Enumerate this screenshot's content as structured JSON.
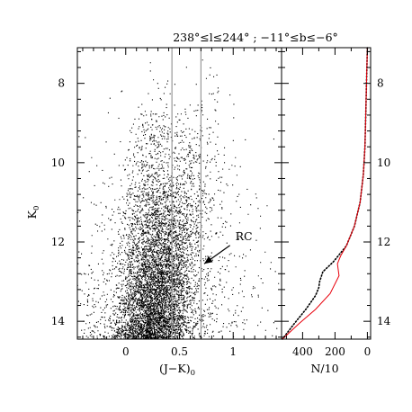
{
  "chart_data": [
    {
      "panel": "cmd",
      "type": "scatter",
      "title": "238°≤l≤244° ; −11°≤b≤−6°",
      "xlabel": "(J−K)₀",
      "ylabel": "K₀",
      "xlim": [
        -0.45,
        1.45
      ],
      "ylim": [
        14.45,
        7.1
      ],
      "x_ticks": [
        {
          "value": 0,
          "label": "0"
        },
        {
          "value": 0.5,
          "label": "0.5"
        },
        {
          "value": 1,
          "label": "1"
        }
      ],
      "y_ticks": [
        {
          "value": 8,
          "label": "8"
        },
        {
          "value": 10,
          "label": "10"
        },
        {
          "value": 12,
          "label": "12"
        },
        {
          "value": 14,
          "label": "14"
        }
      ],
      "vertical_lines": [
        0.43,
        0.7
      ],
      "density_sequences": [
        {
          "color_at_top": 0.3,
          "color_slope": -0.015,
          "spread_at_top": 0.07,
          "spread_growth": 0.015,
          "weight": 0.42
        },
        {
          "color_at_top": 0.78,
          "color_slope": -0.07,
          "spread_at_top": 0.12,
          "spread_growth": 0.006,
          "weight": 0.38
        },
        {
          "color_at_top": 0.3,
          "color_slope": 0.0,
          "spread_at_top": 0.45,
          "spread_growth": 0.0,
          "weight": 0.2
        }
      ],
      "annotations": [
        {
          "text": "RC",
          "x": 0.73,
          "y": 12.55,
          "text_x": 1.02,
          "text_y": 11.95
        }
      ]
    },
    {
      "panel": "luminosity_function",
      "type": "line",
      "xlabel": "N/10",
      "xlim": [
        530,
        -20
      ],
      "ylim": [
        14.45,
        7.1
      ],
      "x_ticks": [
        {
          "value": 400,
          "label": "400"
        },
        {
          "value": 200,
          "label": "200"
        },
        {
          "value": 0,
          "label": "0"
        }
      ],
      "y_ticks": [
        {
          "value": 8,
          "label": "8"
        },
        {
          "value": 10,
          "label": "10"
        },
        {
          "value": 12,
          "label": "12"
        },
        {
          "value": 14,
          "label": "14"
        }
      ],
      "series": [
        {
          "style": "dotted",
          "color": "#000000",
          "points": [
            [
              0,
              7.1
            ],
            [
              5,
              7.9
            ],
            [
              10,
              8.8
            ],
            [
              15,
              9.6
            ],
            [
              25,
              10.3
            ],
            [
              45,
              11.0
            ],
            [
              80,
              11.6
            ],
            [
              130,
              12.1
            ],
            [
              210,
              12.5
            ],
            [
              275,
              12.75
            ],
            [
              295,
              13.0
            ],
            [
              300,
              13.15
            ],
            [
              320,
              13.35
            ],
            [
              380,
              13.7
            ],
            [
              450,
              14.05
            ],
            [
              525,
              14.45
            ]
          ]
        },
        {
          "style": "solid",
          "color": "#e8000b",
          "points": [
            [
              0,
              7.1
            ],
            [
              5,
              7.9
            ],
            [
              10,
              8.8
            ],
            [
              15,
              9.6
            ],
            [
              25,
              10.3
            ],
            [
              45,
              11.0
            ],
            [
              80,
              11.6
            ],
            [
              130,
              12.1
            ],
            [
              165,
              12.35
            ],
            [
              185,
              12.55
            ],
            [
              175,
              12.85
            ],
            [
              230,
              13.3
            ],
            [
              320,
              13.7
            ],
            [
              420,
              14.05
            ],
            [
              525,
              14.45
            ]
          ]
        }
      ]
    }
  ]
}
